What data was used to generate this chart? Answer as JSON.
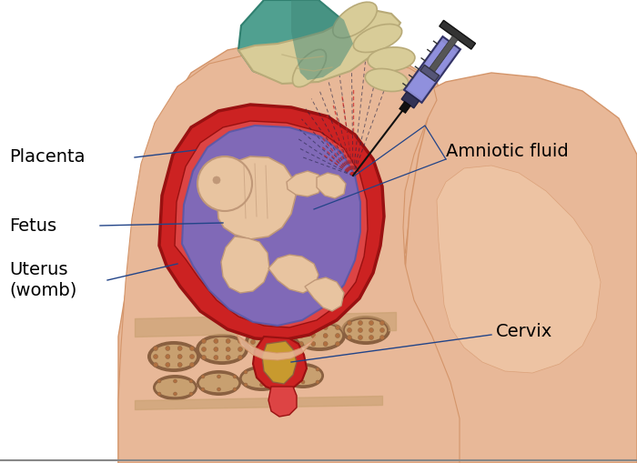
{
  "background_color": "#ffffff",
  "labels": {
    "placenta": "Placenta",
    "fetus": "Fetus",
    "uterus": "Uterus\n(womb)",
    "amniotic_fluid": "Amniotic fluid",
    "cervix": "Cervix"
  },
  "label_fontsize": 14,
  "colors": {
    "skin": "#e8b898",
    "skin_shadow": "#d4956a",
    "skin_light": "#f0c8a8",
    "uterus_red": "#cc2222",
    "uterus_red_dark": "#991111",
    "uterus_inner": "#dd4444",
    "amniotic_blue": "#7070cc",
    "amniotic_blue_light": "#9090dd",
    "fetus_skin": "#e8c4a0",
    "fetus_shadow": "#c09878",
    "placenta_red": "#cc3311",
    "spine_tan": "#c8a070",
    "spine_dark": "#8a6040",
    "spine_brown": "#b07040",
    "cervix_yellow": "#c8a830",
    "cervix_pink": "#d06060",
    "needle": "#222222",
    "glove_cream": "#d8cc98",
    "glove_shadow": "#b8aa78",
    "glove_green": "#50a090",
    "syringe_purple": "#8888cc",
    "syringe_dark": "#555588",
    "ann_line": "#224488"
  },
  "figure_size": [
    7.0,
    5.09
  ],
  "dpi": 100
}
